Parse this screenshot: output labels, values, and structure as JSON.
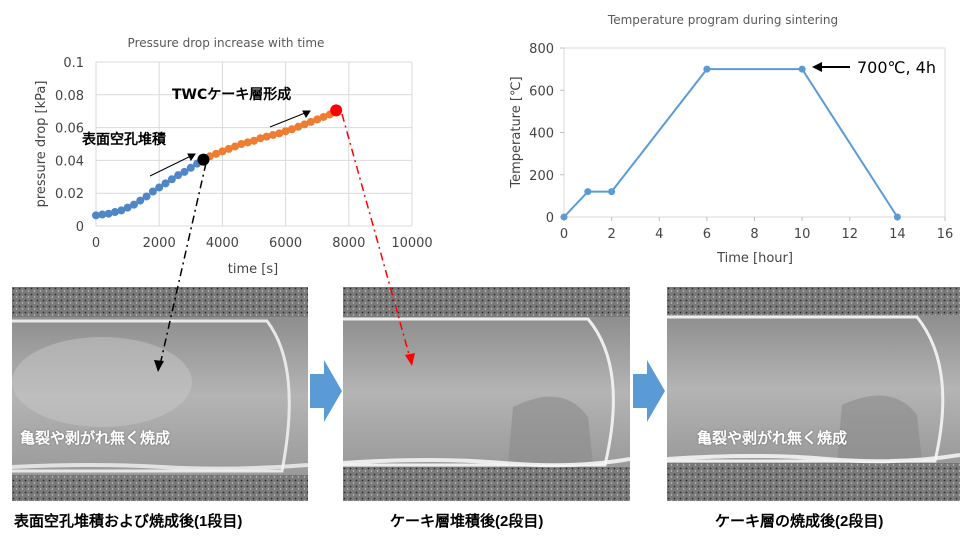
{
  "chart_data": [
    {
      "type": "scatter",
      "title": "Pressure drop increase with time",
      "xlabel": "time [s]",
      "ylabel": "pressure drop [kPa]",
      "xlim": [
        0,
        10000
      ],
      "ylim": [
        0,
        0.1
      ],
      "xticks": [
        0,
        2000,
        4000,
        6000,
        8000,
        10000
      ],
      "yticks": [
        0,
        0.02,
        0.04,
        0.06,
        0.08,
        0.1
      ],
      "ytick_labels": [
        "0",
        "0.02",
        "0.04",
        "0.06",
        "0.08",
        "0.1"
      ],
      "grid": true,
      "series": [
        {
          "color": "#4f86c6",
          "x": [
            0,
            200,
            400,
            600,
            800,
            1000,
            1200,
            1400,
            1600,
            1800,
            2000,
            2200,
            2400,
            2600,
            2800,
            3000,
            3200,
            3400
          ],
          "y": [
            0.0065,
            0.007,
            0.0075,
            0.0085,
            0.0095,
            0.0112,
            0.013,
            0.0155,
            0.018,
            0.021,
            0.0235,
            0.026,
            0.0285,
            0.031,
            0.033,
            0.0355,
            0.038,
            0.0405
          ]
        },
        {
          "color": "#ee7d31",
          "x": [
            3400,
            3600,
            3800,
            4000,
            4200,
            4400,
            4600,
            4800,
            5000,
            5200,
            5400,
            5600,
            5800,
            6000,
            6200,
            6400,
            6600,
            6800,
            7000,
            7200,
            7400,
            7600
          ],
          "y": [
            0.0405,
            0.0425,
            0.044,
            0.0455,
            0.047,
            0.0485,
            0.05,
            0.051,
            0.052,
            0.0535,
            0.0545,
            0.0555,
            0.0565,
            0.0578,
            0.059,
            0.0605,
            0.062,
            0.0635,
            0.065,
            0.0665,
            0.068,
            0.0705
          ]
        }
      ],
      "markers": [
        {
          "x": 3400,
          "y": 0.0405,
          "color": "#000000"
        },
        {
          "x": 7600,
          "y": 0.0705,
          "color": "#ff0000"
        }
      ],
      "annotations": [
        {
          "text": "表面空孔堆積",
          "x": 1300,
          "y": 0.05
        },
        {
          "text": "TWCケーキ層形成",
          "x": 4900,
          "y": 0.079
        }
      ]
    },
    {
      "type": "line",
      "title": "Temperature program during sintering",
      "xlabel": "Time [hour]",
      "ylabel": "Temperature [℃]",
      "xlim": [
        0,
        16
      ],
      "ylim": [
        0,
        800
      ],
      "xticks": [
        0,
        2,
        4,
        6,
        8,
        10,
        12,
        14,
        16
      ],
      "yticks": [
        0,
        200,
        400,
        600,
        800
      ],
      "grid": false,
      "series": [
        {
          "color": "#5b9bd5",
          "x": [
            0,
            1,
            2,
            6,
            10,
            14
          ],
          "y": [
            0,
            120,
            120,
            700,
            700,
            0
          ]
        }
      ],
      "annotations": [
        {
          "text": "700℃, 4h",
          "x": 10,
          "y": 700
        }
      ]
    }
  ],
  "images": [
    {
      "overlay": "亀裂や剥がれ無く焼成",
      "caption": "表面空孔堆積および焼成後(1段目)"
    },
    {
      "overlay": "",
      "caption": "ケーキ層堆積後(2段目)"
    },
    {
      "overlay": "亀裂や剥がれ無く焼成",
      "caption": "ケーキ層の焼成後(2段目)"
    }
  ],
  "colors": {
    "blue_series": "#4f86c6",
    "orange_series": "#ee7d31",
    "arrow_block": "#5b9bd5",
    "red_marker": "#ff0000"
  }
}
